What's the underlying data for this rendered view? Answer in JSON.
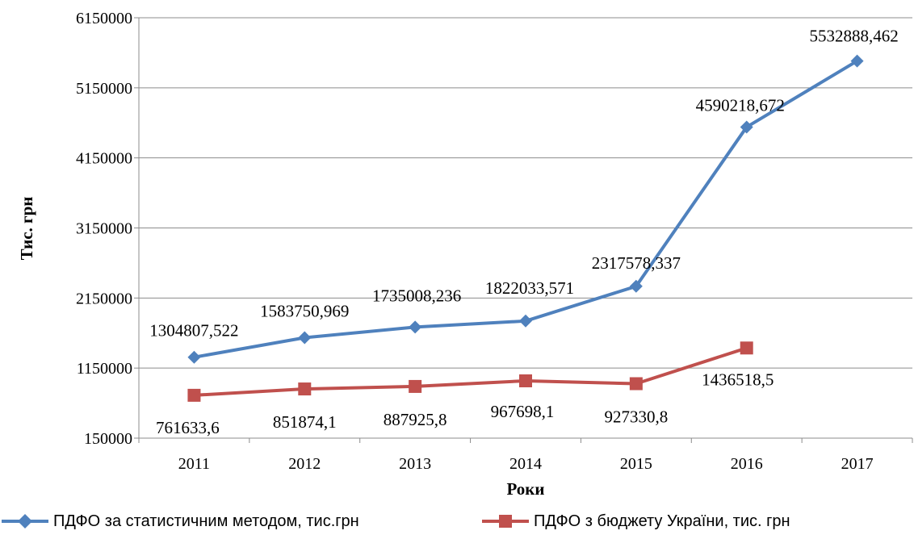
{
  "chart_data": {
    "type": "line",
    "xlabel": "Роки",
    "ylabel": "Тис. грн",
    "ylim": [
      150000,
      6150000
    ],
    "yticks": [
      150000,
      1150000,
      2150000,
      3150000,
      4150000,
      5150000,
      6150000
    ],
    "categories": [
      "2011",
      "2012",
      "2013",
      "2014",
      "2015",
      "2016",
      "2017"
    ],
    "grid": "horizontal",
    "legend_position": "bottom",
    "series": [
      {
        "name": "ПДФО за статистичним методом, тис.грн",
        "color": "#4F81BD",
        "marker": "diamond",
        "values": [
          1304807.522,
          1583750.969,
          1735008.236,
          1822033.571,
          2317578.337,
          4590218.672,
          5532888.462
        ],
        "labels": [
          "1304807,522",
          "1583750,969",
          "1735008,236",
          "1822033,571",
          "2317578,337",
          "4590218,672",
          "5532888,462"
        ]
      },
      {
        "name": "ПДФО з бюджету України, тис. грн",
        "color": "#C0504D",
        "marker": "square",
        "values": [
          761633.6,
          851874.1,
          887925.8,
          967698.1,
          927330.8,
          1436518.5,
          null
        ],
        "labels": [
          "761633,6",
          "851874,1",
          "887925,8",
          "967698,1",
          "927330,8",
          "1436518,5",
          null
        ]
      }
    ]
  }
}
